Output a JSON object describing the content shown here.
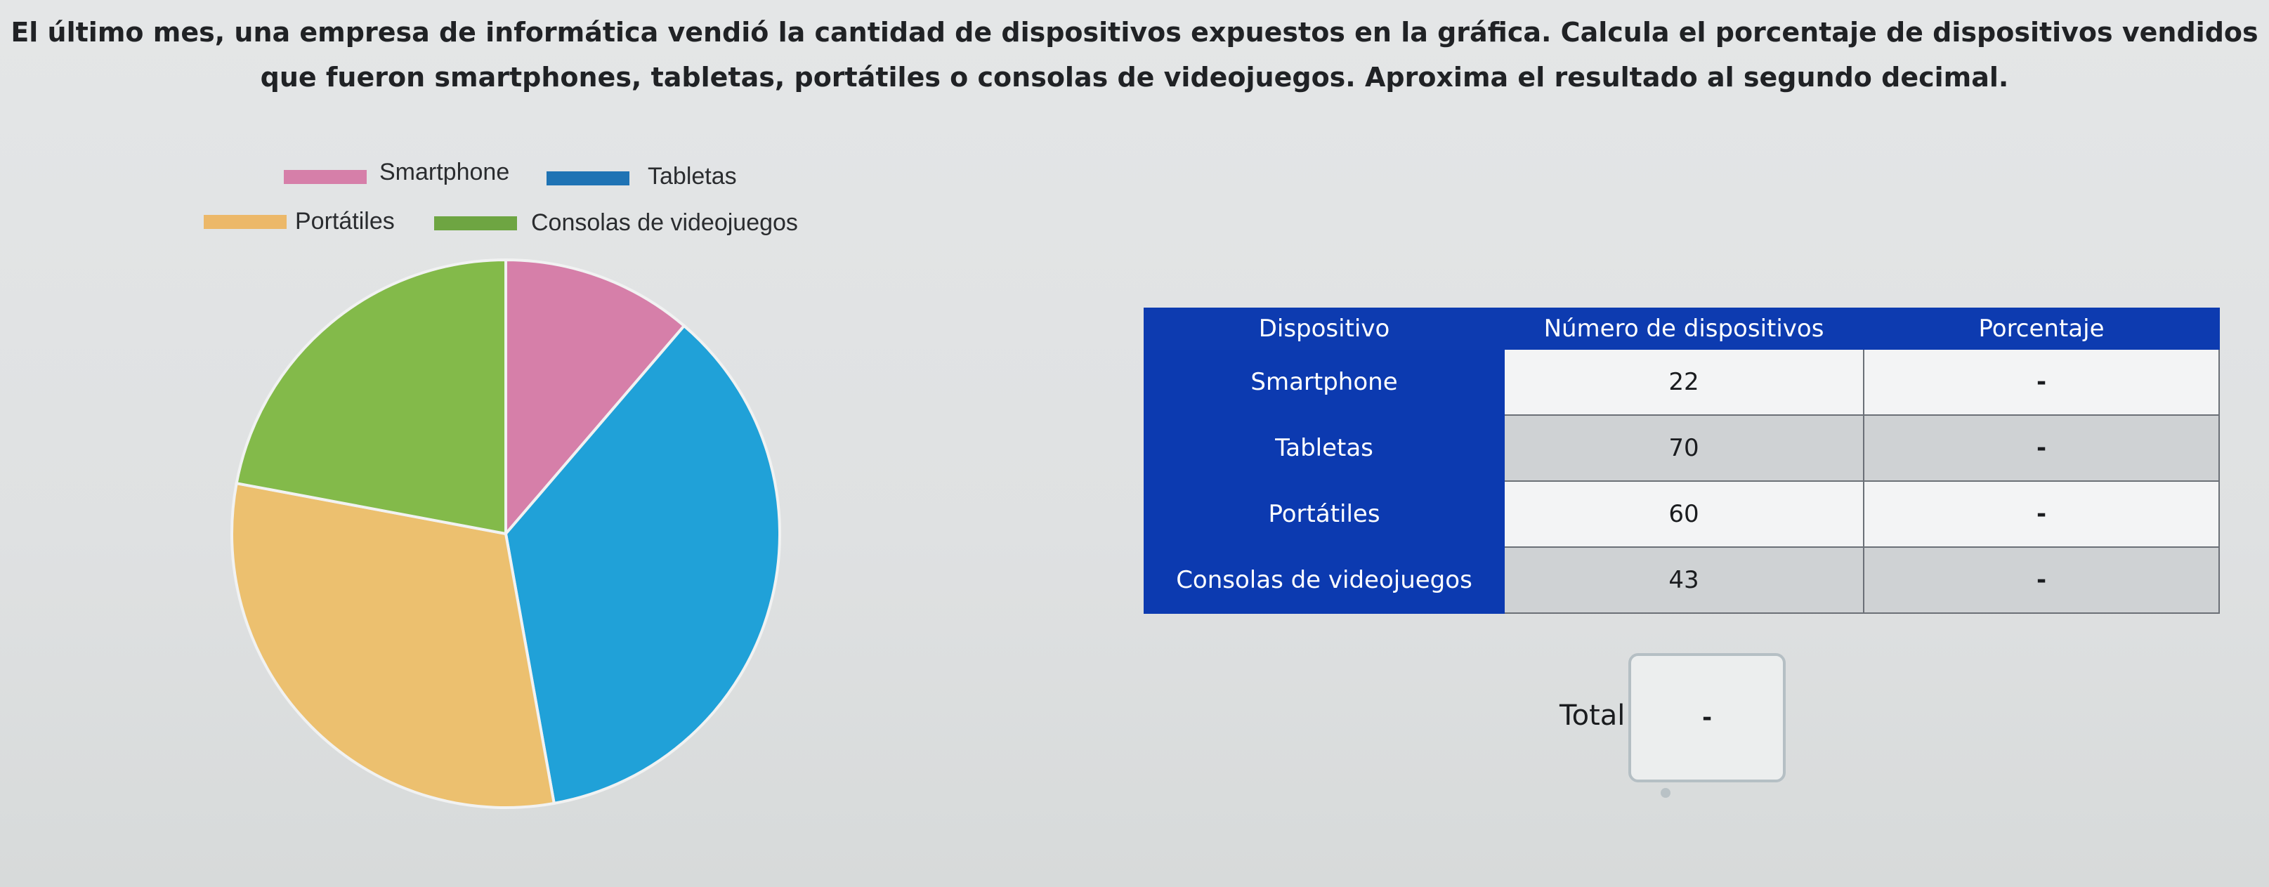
{
  "question": "El último mes, una empresa de informática vendió la cantidad de dispositivos expuestos en la gráfica. Calcula el porcentaje de dispositivos vendidos que fueron smartphones, tabletas, portátiles o consolas de videojuegos. Aproxima el resultado al segundo decimal.",
  "legend": [
    {
      "label": "Smartphone",
      "color": "#d67fa9"
    },
    {
      "label": "Tabletas",
      "color": "#1f73b4"
    },
    {
      "label": "Portátiles",
      "color": "#ecb869"
    },
    {
      "label": "Consolas de videojuegos",
      "color": "#6ea542"
    }
  ],
  "chart_data": {
    "type": "pie",
    "categories": [
      "Smartphone",
      "Tabletas",
      "Portátiles",
      "Consolas de videojuegos"
    ],
    "values": [
      22,
      70,
      60,
      43
    ],
    "slice_colors": [
      "#d67fa9",
      "#20a1d8",
      "#ecc06f",
      "#83ba4a"
    ],
    "legend_position": "top"
  },
  "table": {
    "headers": [
      "Dispositivo",
      "Número de dispositivos",
      "Porcentaje"
    ],
    "rows": [
      {
        "device": "Smartphone",
        "count": "22",
        "percent": "-"
      },
      {
        "device": "Tabletas",
        "count": "70",
        "percent": "-"
      },
      {
        "device": "Portátiles",
        "count": "60",
        "percent": "-"
      },
      {
        "device": "Consolas de videojuegos",
        "count": "43",
        "percent": "-"
      }
    ]
  },
  "total": {
    "label": "Total:",
    "value": "-"
  }
}
